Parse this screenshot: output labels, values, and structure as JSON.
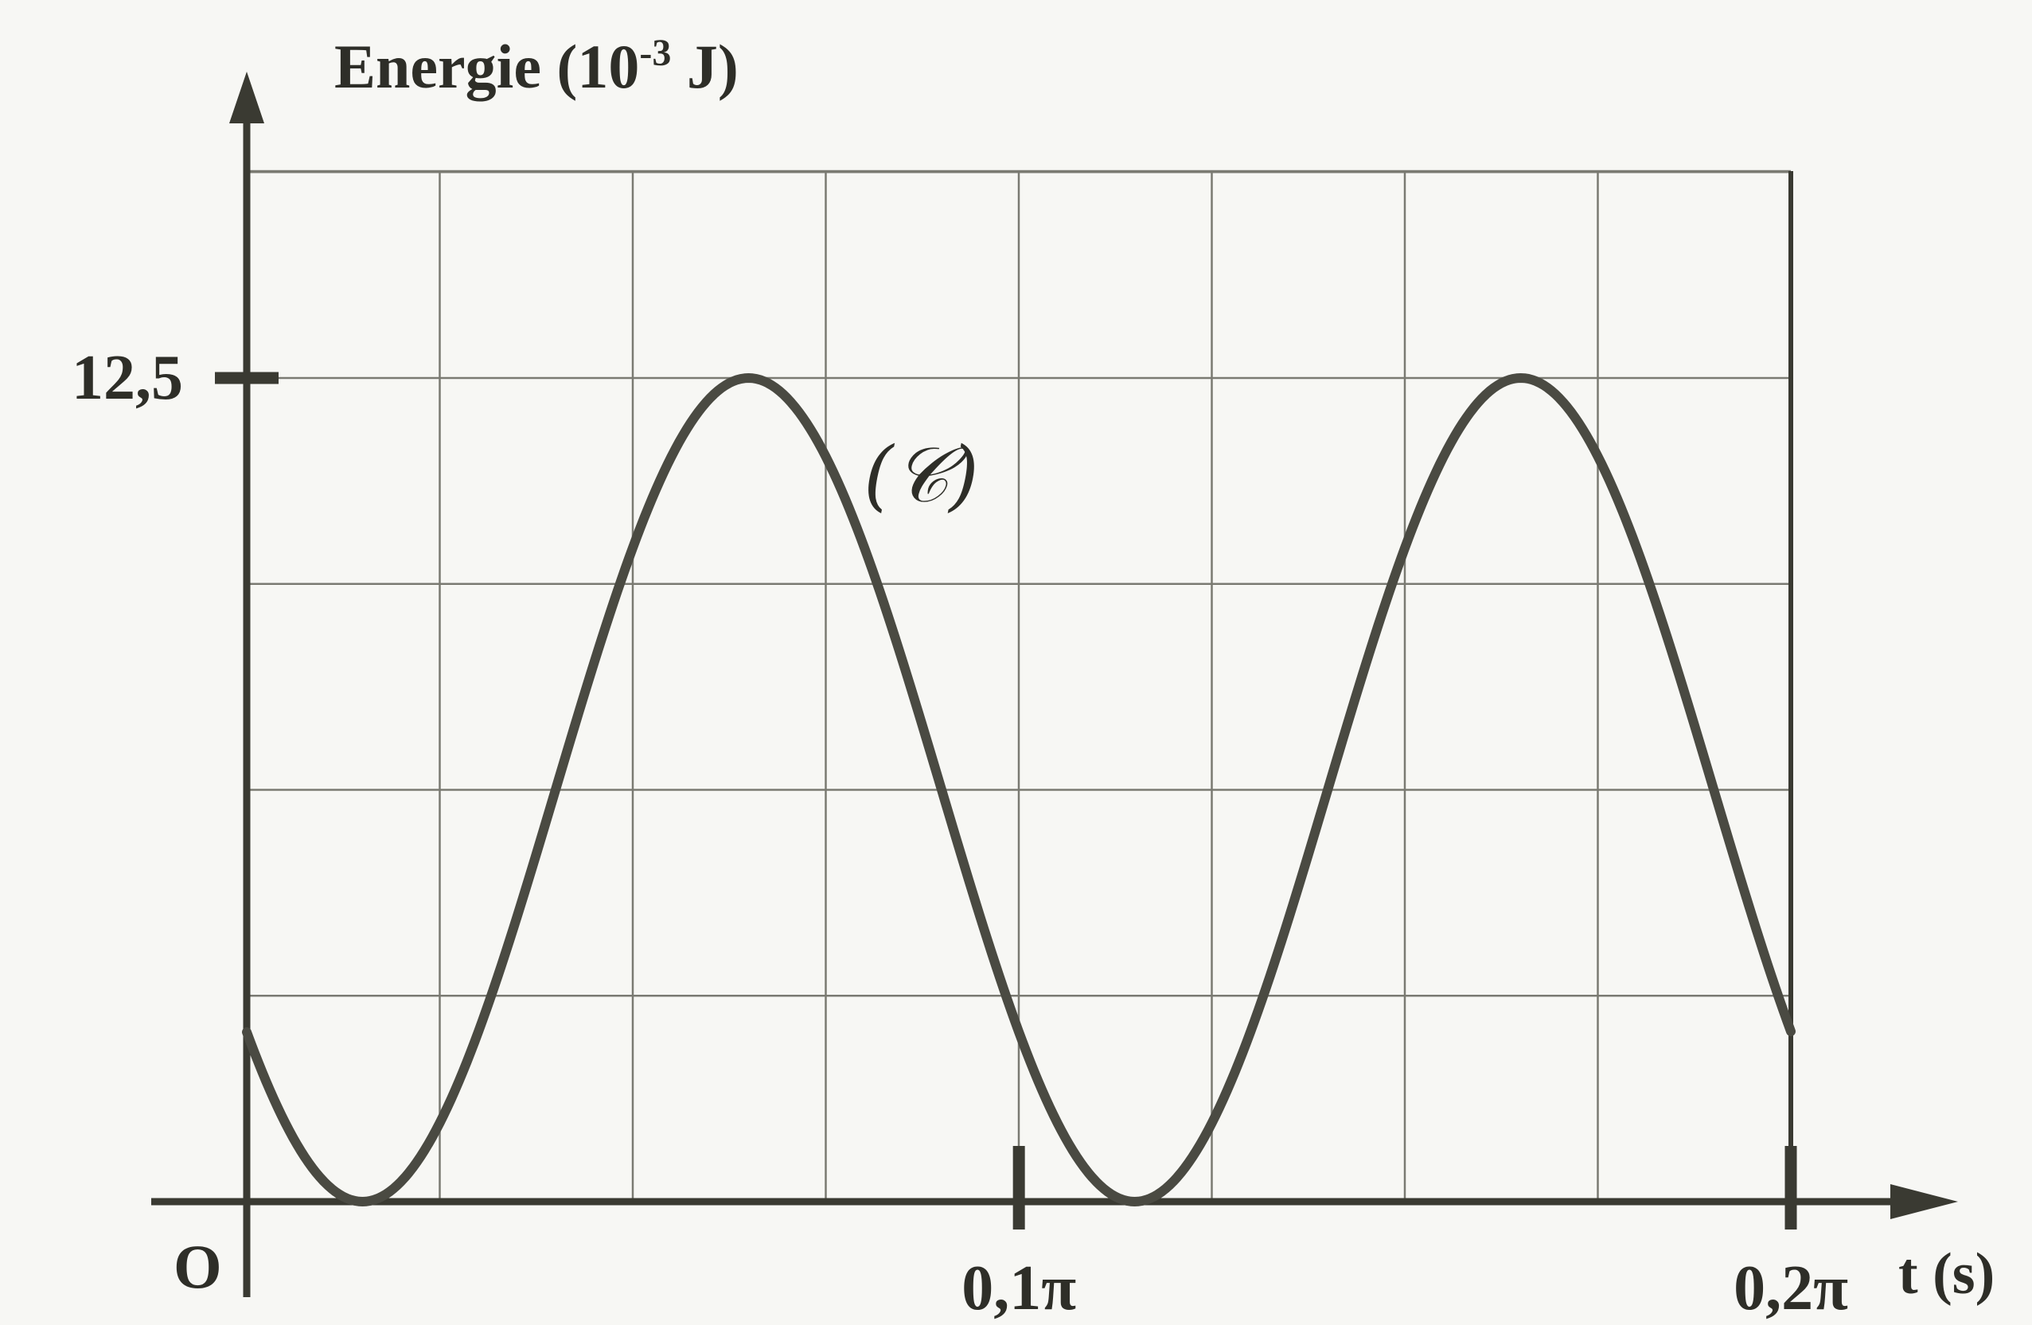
{
  "chart_data": {
    "type": "line",
    "ylabel_main": "Energie (10",
    "ylabel_exp": "-3",
    "ylabel_unit": " J)",
    "xlabel": "t (s)",
    "origin_label": "O",
    "curve_label": "(𝒞)",
    "y_tick_labels": [
      "12,5"
    ],
    "y_ticks": [
      12.5
    ],
    "x_tick_labels": [
      "0,1π",
      "0,2π"
    ],
    "x_ticks": [
      0.3142,
      0.6283
    ],
    "xlim": [
      0,
      0.6283
    ],
    "ylim": [
      0,
      12.5
    ],
    "grid": true,
    "grid_cols": 8,
    "grid_rows_to_max": 4,
    "series": [
      {
        "amplitude": 6.25,
        "offset": 6.25,
        "period": 0.3142,
        "phase_peak_t": 0.2042,
        "x": [
          0,
          0.0393,
          0.0785,
          0.1178,
          0.1571,
          0.1963,
          0.2356,
          0.2749,
          0.3142,
          0.3534,
          0.3927,
          0.432,
          0.4712,
          0.5105,
          0.5498,
          0.589,
          0.6283
        ],
        "values": [
          3.13,
          0.24,
          1.04,
          5.43,
          10.55,
          12.46,
          9.3,
          4.1,
          3.13,
          0.24,
          1.04,
          5.43,
          10.55,
          12.46,
          9.3,
          4.1,
          3.13
        ]
      }
    ]
  }
}
